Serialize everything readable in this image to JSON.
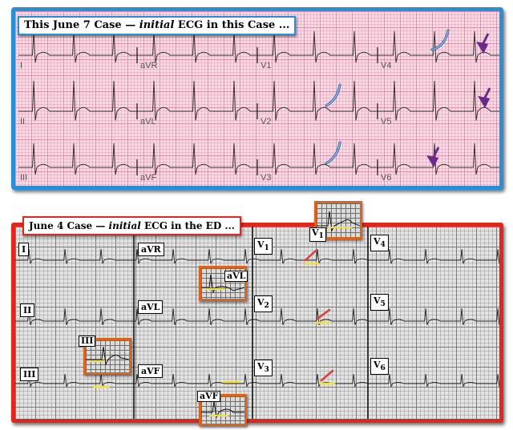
{
  "top_panel": {
    "title_prefix": "This June 7 Case — ",
    "title_italic": "initial",
    "title_suffix": " ECG in this Case ...",
    "leads": [
      "I",
      "aVR",
      "V1",
      "V4",
      "II",
      "aVL",
      "V2",
      "V5",
      "III",
      "aVF",
      "V3",
      "V6"
    ],
    "frame_color": "#2a8ed6"
  },
  "bottom_panel": {
    "title_prefix": "June 4 Case — ",
    "title_italic": "initial",
    "title_suffix": " ECG in the ED ...",
    "leads": {
      "I": "I",
      "aVR": "aVR",
      "V1": "V",
      "V1_sub": "1",
      "V4": "V",
      "V4_sub": "4",
      "II": "II",
      "aVL": "aVL",
      "V2": "V",
      "V2_sub": "2",
      "V5": "V",
      "V5_sub": "5",
      "III": "III",
      "aVF": "aVF",
      "V3": "V",
      "V3_sub": "3",
      "V6": "V",
      "V6_sub": "6"
    },
    "insets": {
      "V1": "V",
      "V1_sub": "1",
      "aVL": "aVL",
      "III": "III",
      "aVF": "aVF"
    },
    "frame_color": "#e1261c",
    "inset_color": "#d9641c"
  },
  "annotation_colors": {
    "blue_curve": "#5b8fd0",
    "purple_arrow": "#6a2a8a",
    "red_line": "#e23b3b",
    "yellow_line": "#f1e23a"
  }
}
